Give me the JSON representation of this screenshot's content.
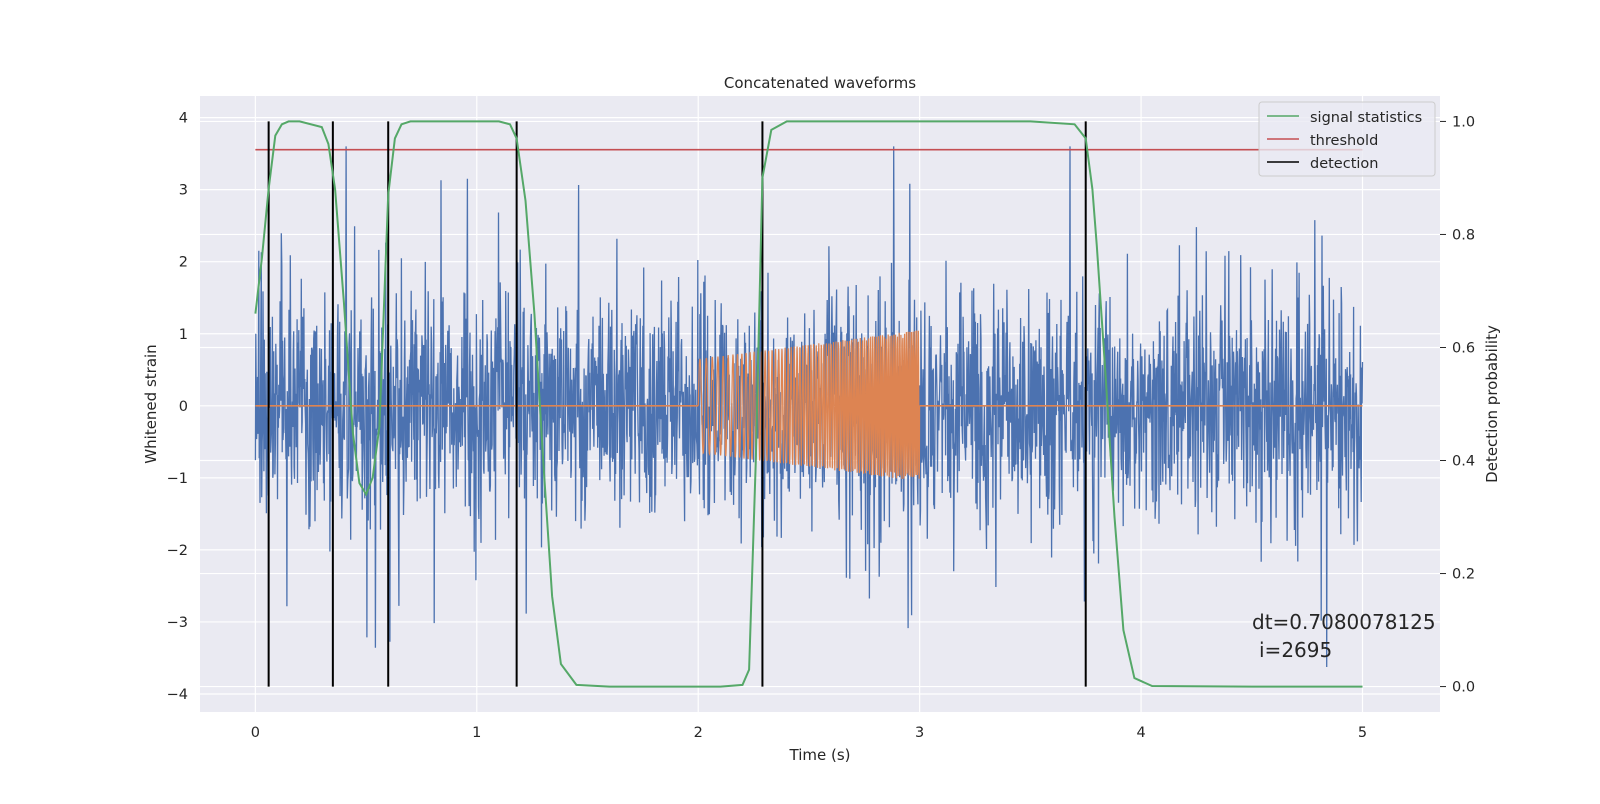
{
  "chart_data": {
    "type": "line",
    "title": "Concatenated waveforms",
    "xlabel": "Time (s)",
    "ylabel": "Whitened strain",
    "y2label": "Detection probability",
    "xlim": [
      -0.25,
      5.35
    ],
    "ylim": [
      -4.25,
      4.3
    ],
    "y2lim": [
      -0.045,
      1.045
    ],
    "xticks": [
      0,
      1,
      2,
      3,
      4,
      5
    ],
    "xtick_labels": [
      "0",
      "1",
      "2",
      "3",
      "4",
      "5"
    ],
    "yticks": [
      -4,
      -3,
      -2,
      -1,
      0,
      1,
      2,
      3,
      4
    ],
    "ytick_labels": [
      "−4",
      "−3",
      "−2",
      "−1",
      "0",
      "1",
      "2",
      "3",
      "4"
    ],
    "y2ticks": [
      0.0,
      0.2,
      0.4,
      0.6,
      0.8,
      1.0
    ],
    "y2tick_labels": [
      "0.0",
      "0.2",
      "0.4",
      "0.6",
      "0.8",
      "1.0"
    ],
    "grid": true,
    "legend_position": "top-right",
    "annotation": [
      "dt=0.7080078125",
      "i=2695"
    ],
    "series": [
      {
        "name": "",
        "role": "whitened strain noise",
        "color": "#4c72b0",
        "x_range": [
          0,
          5
        ],
        "approx_envelope": [
          -3.85,
          3.6
        ]
      },
      {
        "name": "",
        "role": "injected waveform",
        "color": "#dd8452",
        "flat_zero": [
          [
            0,
            2
          ],
          [
            3,
            5
          ]
        ],
        "chirp_x_range": [
          2,
          3
        ],
        "chirp_amplitude": [
          0.65,
          1.05
        ]
      },
      {
        "name": "signal statistics",
        "color": "#55a868",
        "axis": "right",
        "x": [
          0.0,
          0.03,
          0.06,
          0.09,
          0.12,
          0.15,
          0.2,
          0.3,
          0.33,
          0.36,
          0.4,
          0.44,
          0.47,
          0.5,
          0.53,
          0.56,
          0.6,
          0.63,
          0.66,
          0.7,
          0.8,
          1.0,
          1.1,
          1.15,
          1.18,
          1.22,
          1.26,
          1.3,
          1.34,
          1.38,
          1.45,
          1.6,
          2.0,
          2.1,
          2.2,
          2.23,
          2.26,
          2.29,
          2.33,
          2.4,
          2.6,
          3.0,
          3.5,
          3.7,
          3.75,
          3.78,
          3.8,
          3.84,
          3.88,
          3.92,
          3.97,
          4.05,
          4.5,
          5.0
        ],
        "y": [
          0.66,
          0.76,
          0.88,
          0.975,
          0.995,
          1.0,
          1.0,
          0.99,
          0.96,
          0.88,
          0.68,
          0.45,
          0.36,
          0.34,
          0.37,
          0.46,
          0.87,
          0.97,
          0.995,
          1.0,
          1.0,
          1.0,
          1.0,
          0.995,
          0.97,
          0.86,
          0.66,
          0.4,
          0.16,
          0.04,
          0.003,
          0.0,
          0.0,
          0.0,
          0.003,
          0.03,
          0.4,
          0.9,
          0.985,
          1.0,
          1.0,
          1.0,
          1.0,
          0.995,
          0.97,
          0.88,
          0.78,
          0.55,
          0.3,
          0.1,
          0.015,
          0.001,
          0.0,
          0.0
        ]
      },
      {
        "name": "threshold",
        "color": "#c44e52",
        "axis": "right",
        "x": [
          0,
          5
        ],
        "y": [
          0.95,
          0.95
        ]
      },
      {
        "name": "detection",
        "color": "#000000",
        "axis": "right",
        "type": "vlines",
        "x": [
          0.06,
          0.35,
          0.6,
          1.18,
          2.29,
          3.75
        ],
        "y_range": [
          0.0,
          1.0
        ]
      }
    ]
  }
}
